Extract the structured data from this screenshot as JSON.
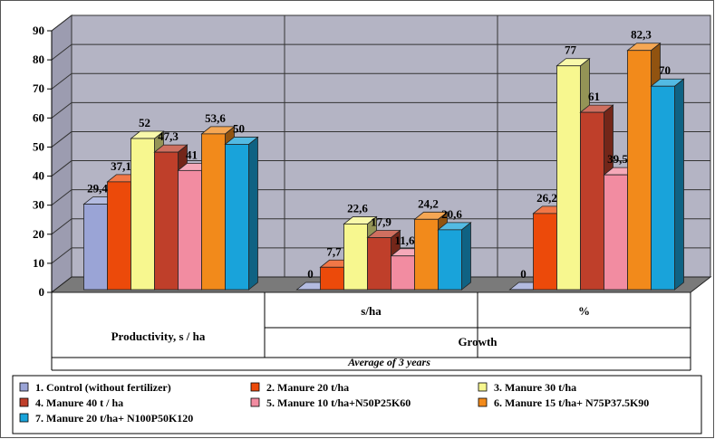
{
  "chart_data": {
    "type": "bar",
    "y_ticks": [
      "0",
      "10",
      "20",
      "30",
      "40",
      "50",
      "60",
      "70",
      "80",
      "90"
    ],
    "ylim": [
      0,
      90
    ],
    "groups": [
      {
        "label": "",
        "label_lines": [
          "Productivity, s / ha"
        ]
      },
      {
        "label": "s/ha",
        "label_lines": [
          "Growth"
        ]
      },
      {
        "label": "%",
        "label_lines": []
      }
    ],
    "group_footer": "Average of 3 years",
    "series": [
      {
        "name": "1.  Control (without fertilizer)",
        "color": "#9aa4d6",
        "values": [
          29.4,
          0,
          0
        ],
        "labels": [
          "29,4",
          "0",
          "0"
        ]
      },
      {
        "name": "2.  Manure   20 t/ha",
        "color": "#ec4a0a",
        "values": [
          37.1,
          7.7,
          26.2
        ],
        "labels": [
          "37,1",
          "7,7",
          "26,2"
        ]
      },
      {
        "name": "3.  Manure   30 t/ha",
        "color": "#f7f78f",
        "values": [
          52,
          22.6,
          77
        ],
        "labels": [
          "52",
          "22,6",
          "77"
        ]
      },
      {
        "name": "4.  Manure 40 t / ha",
        "color": "#bf3f2a",
        "values": [
          47.3,
          17.9,
          61
        ],
        "labels": [
          "47,3",
          "17,9",
          "61"
        ]
      },
      {
        "name": "5.  Manure   10 t/ha+N50P25K60",
        "color": "#f28ca1",
        "values": [
          41,
          11.6,
          39.5
        ],
        "labels": [
          "41",
          "11,6",
          "39,5"
        ]
      },
      {
        "name": "6.  Manure   15 t/ha+ N75P37.5K90",
        "color": "#f28a1b",
        "values": [
          53.6,
          24.2,
          82.3
        ],
        "labels": [
          "53,6",
          "24,2",
          "82,3"
        ]
      },
      {
        "name": "7.  Manure 20 t/ha+ N100P50K120",
        "color": "#19a3da",
        "values": [
          50,
          20.6,
          70
        ],
        "labels": [
          "50",
          "20,6",
          "70"
        ]
      }
    ],
    "plot_bg": "#b4b4c4",
    "floor_color": "#7a7a7a",
    "grid": true,
    "legend_position": "bottom"
  }
}
